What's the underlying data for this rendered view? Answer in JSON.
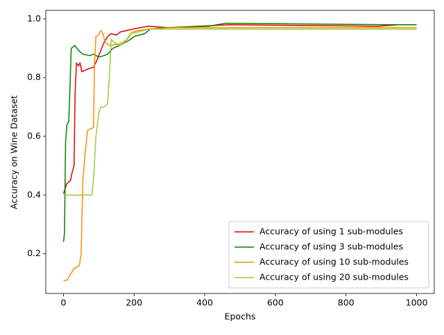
{
  "chart_data": {
    "type": "line",
    "xlabel": "Epochs",
    "ylabel": "Accuracy on Wine Dataset",
    "xlim": [
      -50,
      1050
    ],
    "ylim": [
      0.065,
      1.029
    ],
    "xticks": [
      0,
      200,
      400,
      600,
      800,
      1000
    ],
    "yticks": [
      0.2,
      0.4,
      0.6,
      0.8,
      {
        "value": 1,
        "label": "1.0"
      }
    ],
    "legend": "lower right",
    "series": [
      {
        "name": "Accuracy of using 1 sub-modules",
        "color": "#e00000",
        "x": [
          0,
          10,
          20,
          25,
          30,
          33,
          37,
          42,
          47,
          52,
          70,
          85,
          95,
          105,
          115,
          125,
          135,
          150,
          160,
          195,
          240,
          300,
          470,
          890,
          950,
          1000
        ],
        "values": [
          0.405,
          0.44,
          0.45,
          0.48,
          0.5,
          0.75,
          0.85,
          0.84,
          0.85,
          0.82,
          0.83,
          0.835,
          0.86,
          0.89,
          0.92,
          0.94,
          0.95,
          0.945,
          0.955,
          0.965,
          0.975,
          0.97,
          0.98,
          0.975,
          0.98,
          0.98
        ]
      },
      {
        "name": "Accuracy of using 3 sub-modules",
        "color": "#008000",
        "x": [
          0,
          3,
          6,
          10,
          15,
          18,
          22,
          28,
          32,
          38,
          45,
          55,
          75,
          85,
          100,
          115,
          125,
          140,
          160,
          190,
          200,
          230,
          245,
          280,
          410,
          460,
          930,
          1000
        ],
        "values": [
          0.24,
          0.27,
          0.58,
          0.64,
          0.65,
          0.75,
          0.9,
          0.905,
          0.91,
          0.9,
          0.89,
          0.88,
          0.875,
          0.88,
          0.87,
          0.875,
          0.88,
          0.9,
          0.91,
          0.93,
          0.94,
          0.95,
          0.965,
          0.97,
          0.975,
          0.985,
          0.98,
          0.98
        ]
      },
      {
        "name": "Accuracy of using 10 sub-modules",
        "color": "#ff8c00",
        "x": [
          0,
          10,
          15,
          25,
          30,
          45,
          50,
          55,
          62,
          68,
          75,
          85,
          88,
          92,
          100,
          105,
          112,
          118,
          130,
          160,
          180,
          195,
          210,
          240,
          300,
          1000
        ],
        "values": [
          0.11,
          0.11,
          0.12,
          0.14,
          0.15,
          0.16,
          0.2,
          0.45,
          0.55,
          0.62,
          0.625,
          0.63,
          0.85,
          0.94,
          0.945,
          0.96,
          0.95,
          0.92,
          0.91,
          0.915,
          0.93,
          0.955,
          0.96,
          0.965,
          0.97,
          0.97
        ]
      },
      {
        "name": "Accuracy of using 20 sub-modules",
        "color": "#9acd32",
        "x": [
          0,
          80,
          85,
          92,
          100,
          105,
          115,
          125,
          130,
          135,
          145,
          155,
          170,
          190,
          210,
          240,
          1000
        ],
        "values": [
          0.4,
          0.4,
          0.45,
          0.6,
          0.68,
          0.7,
          0.7,
          0.71,
          0.8,
          0.93,
          0.92,
          0.91,
          0.915,
          0.95,
          0.955,
          0.965,
          0.965
        ]
      }
    ]
  }
}
